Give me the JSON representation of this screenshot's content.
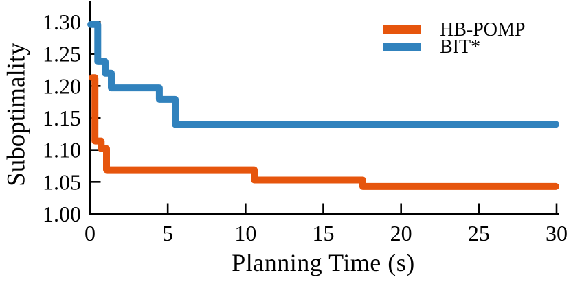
{
  "figure": {
    "background": "#ffffff",
    "text_color": "#000000",
    "axis_color": "#000000"
  },
  "chart_data": {
    "type": "line",
    "subtype": "step",
    "title": "",
    "xlabel": "Planning Time (s)",
    "ylabel": "Suboptimality",
    "xlim": [
      0,
      30
    ],
    "ylim": [
      1.0,
      1.33
    ],
    "grid": false,
    "legend_position": "upper right",
    "xticks": [
      {
        "v": 0,
        "label": "0"
      },
      {
        "v": 5,
        "label": "5"
      },
      {
        "v": 10,
        "label": "10"
      },
      {
        "v": 15,
        "label": "15"
      },
      {
        "v": 20,
        "label": "20"
      },
      {
        "v": 25,
        "label": "25"
      },
      {
        "v": 30,
        "label": "30"
      }
    ],
    "yticks": [
      {
        "v": 1.0,
        "label": "1.00"
      },
      {
        "v": 1.05,
        "label": "1.05"
      },
      {
        "v": 1.1,
        "label": "1.10"
      },
      {
        "v": 1.15,
        "label": "1.15"
      },
      {
        "v": 1.2,
        "label": "1.20"
      },
      {
        "v": 1.25,
        "label": "1.25"
      },
      {
        "v": 1.3,
        "label": "1.30"
      }
    ],
    "series": [
      {
        "name": "HB-POMP",
        "color": "#E6550D",
        "steps": [
          [
            0.15,
            1.213
          ],
          [
            0.32,
            1.114
          ],
          [
            0.72,
            1.102
          ],
          [
            1.06,
            1.069
          ],
          [
            10.56,
            1.053
          ],
          [
            17.54,
            1.043
          ],
          [
            29.95,
            1.043
          ]
        ]
      },
      {
        "name": "BIT*",
        "color": "#3182BD",
        "steps": [
          [
            0.05,
            1.296
          ],
          [
            0.5,
            1.238
          ],
          [
            0.97,
            1.22
          ],
          [
            1.37,
            1.197
          ],
          [
            4.46,
            1.179
          ],
          [
            5.48,
            1.14
          ],
          [
            29.95,
            1.14
          ]
        ]
      }
    ]
  }
}
